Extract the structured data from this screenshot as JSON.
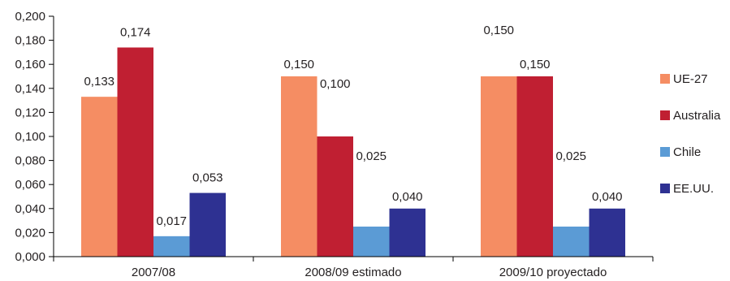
{
  "chart_data": {
    "type": "bar",
    "categories": [
      "2007/08",
      "2008/09 estimado",
      "2009/10 proyectado"
    ],
    "series": [
      {
        "name": "UE-27",
        "color": "#f58d63",
        "values": [
          0.133,
          0.15,
          0.15
        ]
      },
      {
        "name": "Australia",
        "color": "#c01f32",
        "values": [
          0.174,
          0.1,
          0.15
        ]
      },
      {
        "name": "Chile",
        "color": "#5b9bd5",
        "values": [
          0.017,
          0.025,
          0.025
        ]
      },
      {
        "name": "EE.UU.",
        "color": "#2e3192",
        "values": [
          0.053,
          0.04,
          0.04
        ]
      }
    ],
    "data_labels": [
      [
        "0,133",
        "0,150",
        "0,150"
      ],
      [
        "0,174",
        "0,100",
        "0,150"
      ],
      [
        "0,017",
        "0,025",
        "0,025"
      ],
      [
        "0,053",
        "0,040",
        "0,040"
      ]
    ],
    "y_ticks": [
      0,
      0.02,
      0.04,
      0.06,
      0.08,
      0.1,
      0.12,
      0.14,
      0.16,
      0.18,
      0.2
    ],
    "y_tick_labels": [
      "0,000",
      "0,020",
      "0,040",
      "0,060",
      "0,080",
      "0,100",
      "0,120",
      "0,140",
      "0,160",
      "0,180",
      "0,200"
    ],
    "ylim": [
      0,
      0.2
    ],
    "grid": false,
    "legend_position": "right",
    "title": "",
    "xlabel": "",
    "ylabel": ""
  }
}
